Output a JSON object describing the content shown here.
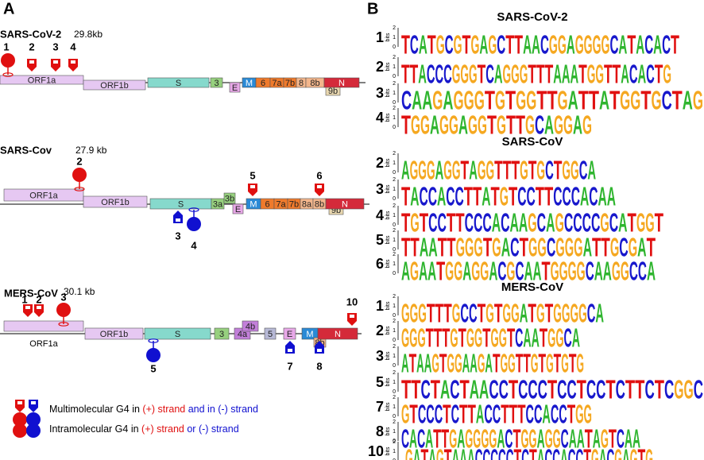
{
  "panel_a": {
    "label": "A",
    "genomes": [
      {
        "name": "SARS-CoV-2",
        "size": "29.8kb",
        "genes": [
          "ORF1a",
          "ORF1b",
          "S",
          "3",
          "E",
          "M",
          "6",
          "7a",
          "7b",
          "8",
          "8b",
          "9b",
          "N"
        ],
        "markers": [
          "1",
          "2",
          "3",
          "4"
        ]
      },
      {
        "name": "SARS-Cov",
        "size": "27.9 kb",
        "genes": [
          "ORF1a",
          "ORF1b",
          "S",
          "3a",
          "3b",
          "E",
          "M",
          "6",
          "7a",
          "7b",
          "8a",
          "8b",
          "9b",
          "N"
        ],
        "markers": [
          "2",
          "5",
          "6",
          "3",
          "4"
        ]
      },
      {
        "name": "MERS-CoV",
        "size": "30.1 kb",
        "genes": [
          "ORF1a",
          "ORF1b",
          "S",
          "3",
          "4a",
          "4b",
          "5",
          "E",
          "M",
          "8b",
          "N"
        ],
        "markers": [
          "1",
          "2",
          "3",
          "10",
          "5",
          "7",
          "8"
        ]
      }
    ],
    "legend": {
      "multi": [
        "Multimolecular G4 in ",
        "(+) strand",
        " and in (-) strand"
      ],
      "intra": [
        "Intramolecular G4 in ",
        "(+) strand",
        " or ",
        "(-) strand"
      ]
    }
  },
  "panel_b": {
    "label": "B",
    "axis_title": "bits",
    "ticks": [
      2,
      1,
      0
    ],
    "groups": [
      {
        "title": "SARS-CoV-2",
        "logos": [
          {
            "label": "1",
            "sequence": "TCATGCGTGAGCTTAACGGAGGGGCATACACT"
          },
          {
            "label": "2",
            "sequence": "TTACCCGGGTCAGGGTTTAAATGGTTACACTG"
          },
          {
            "label": "3",
            "sequence": "CAAGAGGGTGTGGTTGATTATGGTGCTAG"
          },
          {
            "label": "4",
            "sequence": "TGGAGGAGGTGTTGCAGGAG"
          }
        ]
      },
      {
        "title": "SARS-CoV",
        "logos": [
          {
            "label": "2",
            "sequence": "AGGGAGGTAGGTTTGTGCTGGCA"
          },
          {
            "label": "3",
            "sequence": "TACCACCTTATGTCCTTCCCACAA"
          },
          {
            "label": "4",
            "sequence": "TGTCCTTCCCACAAGCAGCCCCGCATGGT"
          },
          {
            "label": "5",
            "sequence": "TTAATTGGGTGACTGGCGGGATTGCGAT"
          },
          {
            "label": "6",
            "sequence": "AGAATGGAGGACGCAATGGGGCAAGGCCA"
          }
        ]
      },
      {
        "title": "MERS-CoV",
        "logos": [
          {
            "label": "1",
            "sequence": "GGGTTTGCCTGTGGATGTGGGGCA"
          },
          {
            "label": "2",
            "sequence": "GGGTTTGTGGTGGTCAATGGCA"
          },
          {
            "label": "3",
            "sequence": "ATAAGTGGAAGATGGTTGTGTGTG"
          },
          {
            "label": "5",
            "sequence": "TTCTACTAACCTCCCTCCTCCTCTTCTCGGC"
          },
          {
            "label": "7",
            "sequence": "GTCCCTCTTACCTTTCCACCTGG"
          },
          {
            "label": "8",
            "sequence": "CACATTGAGGGGACTGGAGGCAATAGTCAA"
          },
          {
            "label": "10",
            "sequence": "GATAGTAAACCCCCTCTACCACCTGACGAGTG"
          }
        ]
      }
    ]
  }
}
